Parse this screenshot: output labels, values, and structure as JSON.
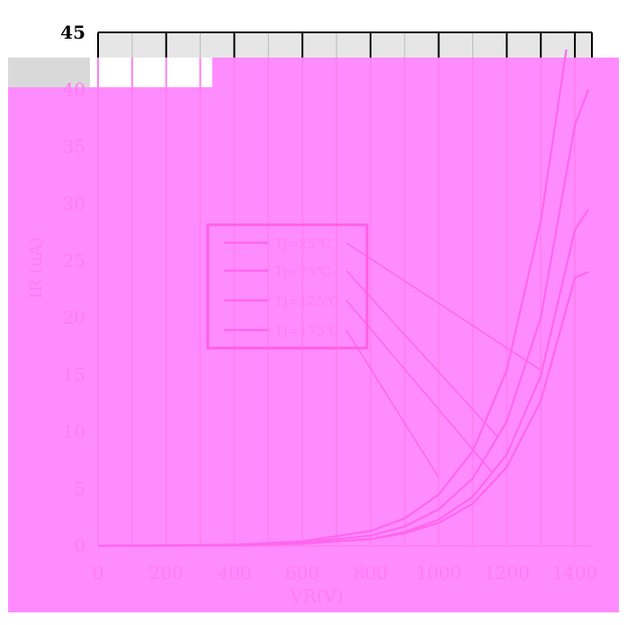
{
  "chart_data": {
    "type": "line",
    "xlabel": "VR(V)",
    "ylabel": "IR (uA)",
    "xlim": [
      0,
      1450
    ],
    "ylim": [
      0,
      45
    ],
    "xticks": [
      0,
      200,
      400,
      600,
      800,
      1000,
      1200,
      1400
    ],
    "yticks": [
      0,
      5,
      10,
      15,
      20,
      25,
      30,
      35,
      40,
      45
    ],
    "x_tick_labels": [
      "0",
      "200",
      "400",
      "600",
      "800",
      "1000",
      "1200",
      "1400"
    ],
    "y_tick_labels": [
      "0",
      "5",
      "10",
      "15",
      "20",
      "25",
      "30",
      "35",
      "40",
      "45"
    ],
    "grid": "vertical",
    "legend_position": "center-left",
    "series": [
      {
        "name": "Tj=25℃",
        "x": [
          0,
          400,
          600,
          800,
          900,
          1000,
          1100,
          1200,
          1300,
          1400,
          1440
        ],
        "y": [
          0,
          0.1,
          0.3,
          0.9,
          1.7,
          3.2,
          5.9,
          10.9,
          20.0,
          36.9,
          40.0
        ]
      },
      {
        "name": "Tj=75℃",
        "x": [
          0,
          400,
          600,
          800,
          900,
          1000,
          1100,
          1200,
          1300,
          1400,
          1440
        ],
        "y": [
          0,
          0.05,
          0.2,
          0.6,
          1.2,
          2.3,
          4.3,
          8.0,
          14.9,
          27.7,
          29.5
        ]
      },
      {
        "name": "Tj=125℃",
        "x": [
          0,
          400,
          600,
          800,
          900,
          1000,
          1100,
          1200,
          1300,
          1400,
          1440
        ],
        "y": [
          0,
          0.05,
          0.2,
          0.6,
          1.1,
          2.0,
          3.7,
          6.9,
          12.7,
          23.5,
          24.0
        ]
      },
      {
        "name": "Tj=175℃",
        "x": [
          0,
          400,
          600,
          800,
          900,
          1000,
          1100,
          1200,
          1300,
          1375
        ],
        "y": [
          0,
          0.1,
          0.4,
          1.3,
          2.4,
          4.5,
          8.3,
          15.4,
          28.5,
          43.5
        ]
      }
    ]
  },
  "colors": {
    "overlay": "#ff8cff",
    "line": "#ff66ee",
    "text": "#ff7cf0",
    "legend_border": "#ff5fe6",
    "grid_dark": "#000000",
    "background": "#ffffff"
  }
}
